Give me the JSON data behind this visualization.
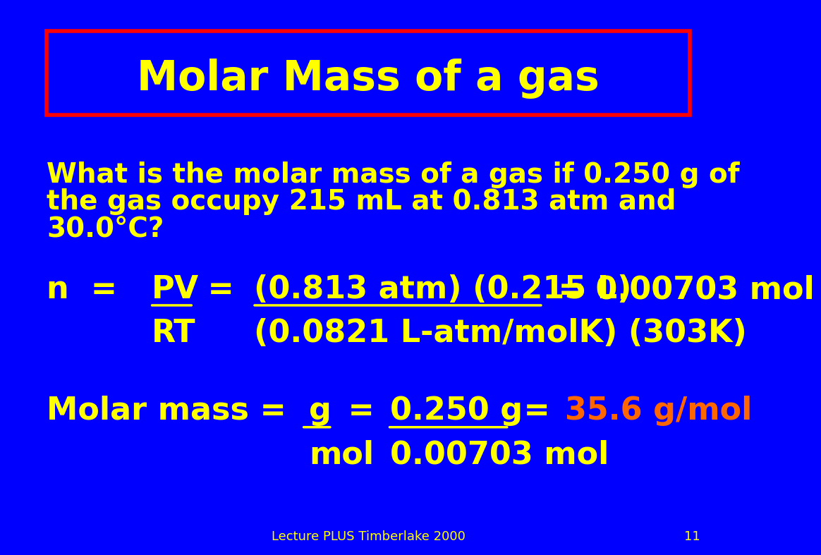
{
  "bg_color": "#0000FF",
  "title": "Molar Mass of a gas",
  "title_color": "#FFFF00",
  "title_fontsize": 42,
  "title_box_color": "#FF0000",
  "yellow": "#FFFF00",
  "orange": "#FF6600",
  "footer_text": "Lecture PLUS Timberlake 2000",
  "page_num": "11",
  "question_line1": "What is the molar mass of a gas if 0.250 g of",
  "question_line2": "the gas occupy 215 mL at 0.813 atm and",
  "question_line3": "30.0°C?",
  "question_fontsize": 28,
  "eq_fontsize": 32,
  "molar_fontsize": 32,
  "footer_fontsize": 13
}
